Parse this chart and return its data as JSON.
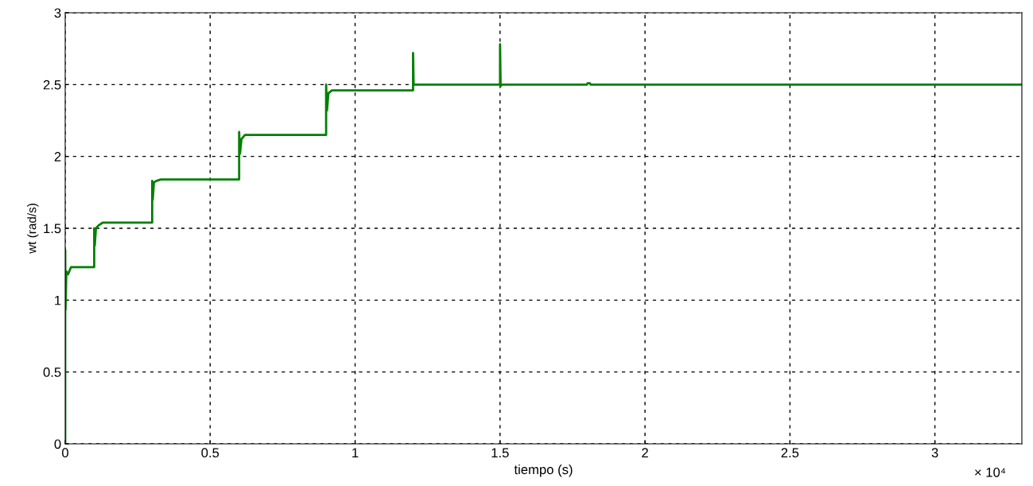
{
  "chart_data": {
    "type": "line",
    "xlabel": "tiempo (s)",
    "ylabel": "wt (rad/s)",
    "annotations": [
      "× 10⁴"
    ],
    "xlim": [
      0,
      3.3
    ],
    "ylim": [
      0,
      3
    ],
    "xticks": [
      0,
      0.5,
      1,
      1.5,
      2,
      2.5,
      3
    ],
    "yticks": [
      0,
      0.5,
      1,
      1.5,
      2,
      2.5,
      3
    ],
    "grid": true,
    "legend": false,
    "series": [
      {
        "color": "#008000",
        "x": [
          0,
          0,
          0.001,
          0.004,
          0.01,
          0.02,
          0.1,
          0.1,
          0.102,
          0.106,
          0.115,
          0.13,
          0.3,
          0.3,
          0.302,
          0.306,
          0.315,
          0.33,
          0.6,
          0.6,
          0.603,
          0.608,
          0.62,
          0.9,
          0.9,
          0.903,
          0.908,
          0.92,
          1.2,
          1.2,
          1.202,
          1.5,
          1.5,
          1.502,
          1.506,
          1.8,
          1.802,
          1.81,
          1.812,
          3.3
        ],
        "values": [
          0,
          1.35,
          0.93,
          1.2,
          1.18,
          1.23,
          1.23,
          1.5,
          1.38,
          1.5,
          1.52,
          1.54,
          1.54,
          1.83,
          1.7,
          1.82,
          1.83,
          1.84,
          1.84,
          2.17,
          2.02,
          2.12,
          2.15,
          2.15,
          2.5,
          2.32,
          2.44,
          2.46,
          2.46,
          2.72,
          2.5,
          2.5,
          2.78,
          2.49,
          2.5,
          2.5,
          2.51,
          2.51,
          2.5,
          2.5
        ]
      }
    ]
  }
}
